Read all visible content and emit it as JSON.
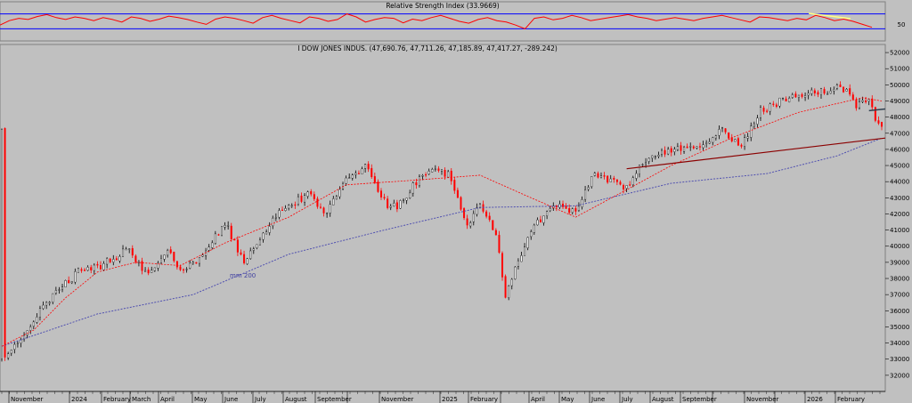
{
  "rsi_panel": {
    "title": "Relative Strength Index (33.9669)",
    "right_label": "50",
    "upper_level": 70,
    "lower_level": 30
  },
  "main_panel": {
    "title": "I DOW JONES INDUS. (47,690.76, 47,711.26, 47,185.89, 47,417.27, -289.242)",
    "ma_label": "mm 200"
  },
  "chart_data": [
    {
      "type": "line",
      "panel": "rsi",
      "title": "Relative Strength Index (33.9669)",
      "series": [
        {
          "name": "Relative Strength Index",
          "color": "#ff0000",
          "values": [
            40,
            52,
            58,
            55,
            63,
            68,
            60,
            55,
            62,
            58,
            52,
            60,
            55,
            48,
            62,
            58,
            50,
            56,
            64,
            60,
            55,
            48,
            42,
            56,
            62,
            58,
            52,
            45,
            60,
            66,
            58,
            52,
            46,
            62,
            58,
            50,
            55,
            70,
            62,
            48,
            55,
            60,
            58,
            46,
            56,
            52,
            60,
            66,
            58,
            50,
            45,
            55,
            60,
            52,
            48,
            40,
            30,
            58,
            62,
            54,
            58,
            66,
            60,
            52,
            56,
            60,
            64,
            68,
            62,
            58,
            52,
            56,
            60,
            56,
            52,
            58,
            62,
            66,
            60,
            54,
            48,
            62,
            60,
            56,
            52,
            58,
            54,
            66,
            60,
            52,
            56,
            50,
            42,
            33.97
          ]
        }
      ],
      "levels": [
        70,
        30
      ],
      "annotations": [
        {
          "label": "50",
          "position": "right axis"
        }
      ],
      "trendline_color": "#ffff80"
    },
    {
      "type": "candlestick",
      "panel": "price",
      "title": "I DOW JONES INDUS. (47,690.76, 47,711.26, 47,185.89, 47,417.27, -289.242)",
      "last_ohlc": {
        "open": 47690.76,
        "high": 47711.26,
        "low": 47185.89,
        "close": 47417.27,
        "change": -289.242
      },
      "ylim": [
        31000,
        52500
      ],
      "y_ticks": [
        32000,
        33000,
        34000,
        35000,
        36000,
        37000,
        38000,
        39000,
        40000,
        41000,
        42000,
        43000,
        44000,
        45000,
        46000,
        47000,
        48000,
        49000,
        50000,
        51000,
        52000
      ],
      "x_labels": [
        "November",
        "2024",
        "February",
        "March",
        "April",
        "May",
        "June",
        "July",
        "August",
        "September",
        "",
        "November",
        "2025",
        "February",
        "",
        "April",
        "May",
        "June",
        "July",
        "August",
        "September",
        "",
        "November",
        "",
        "2026",
        "February"
      ],
      "x_anchors": [
        [
          1,
          33000
        ],
        [
          16,
          37000
        ],
        [
          24,
          38400
        ],
        [
          30,
          38700
        ],
        [
          40,
          39800
        ],
        [
          46,
          38100
        ],
        [
          52,
          39700
        ],
        [
          56,
          38600
        ],
        [
          62,
          39200
        ],
        [
          70,
          41500
        ],
        [
          76,
          39000
        ],
        [
          86,
          42000
        ],
        [
          96,
          43200
        ],
        [
          102,
          42100
        ],
        [
          108,
          44300
        ],
        [
          114,
          44900
        ],
        [
          122,
          42300
        ],
        [
          126,
          42800
        ],
        [
          132,
          44600
        ],
        [
          140,
          44500
        ],
        [
          146,
          41200
        ],
        [
          150,
          42500
        ],
        [
          155,
          40800
        ],
        [
          158,
          37000
        ],
        [
          162,
          39000
        ],
        [
          166,
          40900
        ],
        [
          172,
          42500
        ],
        [
          180,
          42200
        ],
        [
          186,
          44600
        ],
        [
          192,
          44000
        ],
        [
          196,
          43600
        ],
        [
          202,
          45400
        ],
        [
          210,
          46000
        ],
        [
          218,
          46000
        ],
        [
          226,
          47200
        ],
        [
          232,
          46200
        ],
        [
          238,
          48400
        ],
        [
          248,
          49300
        ],
        [
          256,
          49600
        ],
        [
          264,
          49800
        ],
        [
          268,
          48700
        ],
        [
          272,
          49300
        ],
        [
          274,
          47600
        ],
        [
          276,
          47417
        ]
      ],
      "series": [
        {
          "name": "mm 200",
          "color": "#5050b0",
          "style": "dashed",
          "x_anchors": [
            [
              0,
              33800
            ],
            [
              30,
              35800
            ],
            [
              60,
              37000
            ],
            [
              90,
              39500
            ],
            [
              120,
              41000
            ],
            [
              150,
              42400
            ],
            [
              180,
              42500
            ],
            [
              210,
              43900
            ],
            [
              240,
              44500
            ],
            [
              262,
              45600
            ],
            [
              276,
              46700
            ]
          ]
        },
        {
          "name": "",
          "color": "#ff0000",
          "style": "dashed",
          "x_anchors": [
            [
              0,
              33800
            ],
            [
              10,
              34800
            ],
            [
              20,
              36800
            ],
            [
              30,
              38400
            ],
            [
              42,
              39000
            ],
            [
              56,
              38800
            ],
            [
              70,
              40200
            ],
            [
              90,
              41800
            ],
            [
              108,
              43800
            ],
            [
              130,
              44100
            ],
            [
              150,
              44400
            ],
            [
              166,
              43000
            ],
            [
              180,
              41800
            ],
            [
              196,
              43500
            ],
            [
              210,
              45000
            ],
            [
              230,
              46800
            ],
            [
              250,
              48300
            ],
            [
              270,
              49200
            ],
            [
              276,
              49000
            ]
          ]
        }
      ],
      "trendlines": [
        {
          "color": "#8b0000",
          "from": [
            196,
            44800
          ],
          "to": [
            276,
            46700
          ]
        },
        {
          "color": "#304050",
          "from": [
            272,
            48400
          ],
          "to": [
            276,
            48500
          ]
        }
      ]
    }
  ]
}
